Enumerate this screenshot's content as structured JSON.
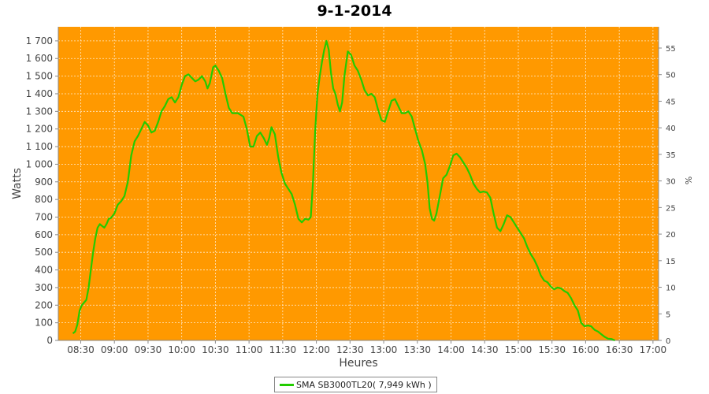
{
  "chart_data": {
    "type": "line",
    "title": "9-1-2014",
    "xlabel": "Heures",
    "ylabel": "Watts",
    "y2label": "%",
    "x_range": [
      "08:10",
      "17:05"
    ],
    "ylim": [
      0,
      1780
    ],
    "y2lim": [
      0,
      59
    ],
    "y_ticks": [
      "0",
      "100",
      "200",
      "300",
      "400",
      "500",
      "600",
      "700",
      "800",
      "900",
      "1 000",
      "1 100",
      "1 200",
      "1 300",
      "1 400",
      "1 500",
      "1 600",
      "1 700"
    ],
    "y2_ticks": [
      "0",
      "5",
      "10",
      "15",
      "20",
      "25",
      "30",
      "35",
      "40",
      "45",
      "50",
      "55"
    ],
    "x_ticks": [
      "08:30",
      "09:00",
      "09:30",
      "10:00",
      "10:30",
      "11:00",
      "11:30",
      "12:00",
      "12:30",
      "13:00",
      "13:30",
      "14:00",
      "14:30",
      "15:00",
      "15:30",
      "16:00",
      "16:30",
      "17:00"
    ],
    "grid": true,
    "background": "#ff9900",
    "legend_position": "bottom",
    "series": [
      {
        "name": "SMA SB3000TL20( 7,949 kWh )",
        "color": "#22cc00",
        "points": [
          [
            "08:23",
            40
          ],
          [
            "08:25",
            50
          ],
          [
            "08:27",
            90
          ],
          [
            "08:29",
            170
          ],
          [
            "08:31",
            200
          ],
          [
            "08:33",
            215
          ],
          [
            "08:35",
            230
          ],
          [
            "08:37",
            300
          ],
          [
            "08:39",
            400
          ],
          [
            "08:41",
            500
          ],
          [
            "08:43",
            580
          ],
          [
            "08:45",
            640
          ],
          [
            "08:47",
            660
          ],
          [
            "08:49",
            650
          ],
          [
            "08:51",
            640
          ],
          [
            "08:53",
            660
          ],
          [
            "08:55",
            690
          ],
          [
            "08:57",
            695
          ],
          [
            "09:00",
            720
          ],
          [
            "09:03",
            770
          ],
          [
            "09:06",
            790
          ],
          [
            "09:09",
            820
          ],
          [
            "09:12",
            900
          ],
          [
            "09:15",
            1050
          ],
          [
            "09:18",
            1130
          ],
          [
            "09:21",
            1160
          ],
          [
            "09:24",
            1200
          ],
          [
            "09:27",
            1240
          ],
          [
            "09:30",
            1220
          ],
          [
            "09:33",
            1180
          ],
          [
            "09:36",
            1190
          ],
          [
            "09:39",
            1240
          ],
          [
            "09:42",
            1300
          ],
          [
            "09:45",
            1330
          ],
          [
            "09:48",
            1370
          ],
          [
            "09:51",
            1380
          ],
          [
            "09:54",
            1350
          ],
          [
            "09:57",
            1380
          ],
          [
            "10:00",
            1450
          ],
          [
            "10:03",
            1500
          ],
          [
            "10:06",
            1510
          ],
          [
            "10:09",
            1490
          ],
          [
            "10:12",
            1470
          ],
          [
            "10:15",
            1480
          ],
          [
            "10:18",
            1500
          ],
          [
            "10:21",
            1470
          ],
          [
            "10:23",
            1430
          ],
          [
            "10:25",
            1460
          ],
          [
            "10:28",
            1550
          ],
          [
            "10:30",
            1560
          ],
          [
            "10:33",
            1530
          ],
          [
            "10:36",
            1490
          ],
          [
            "10:39",
            1400
          ],
          [
            "10:42",
            1320
          ],
          [
            "10:45",
            1290
          ],
          [
            "10:50",
            1290
          ],
          [
            "10:55",
            1270
          ],
          [
            "10:58",
            1200
          ],
          [
            "11:01",
            1100
          ],
          [
            "11:04",
            1100
          ],
          [
            "11:07",
            1160
          ],
          [
            "11:10",
            1180
          ],
          [
            "11:13",
            1150
          ],
          [
            "11:16",
            1110
          ],
          [
            "11:18",
            1150
          ],
          [
            "11:20",
            1210
          ],
          [
            "11:23",
            1170
          ],
          [
            "11:26",
            1040
          ],
          [
            "11:29",
            950
          ],
          [
            "11:32",
            890
          ],
          [
            "11:35",
            860
          ],
          [
            "11:38",
            830
          ],
          [
            "11:41",
            770
          ],
          [
            "11:44",
            690
          ],
          [
            "11:47",
            670
          ],
          [
            "11:50",
            690
          ],
          [
            "11:53",
            685
          ],
          [
            "11:55",
            700
          ],
          [
            "11:57",
            900
          ],
          [
            "11:59",
            1200
          ],
          [
            "12:01",
            1400
          ],
          [
            "12:03",
            1500
          ],
          [
            "12:05",
            1580
          ],
          [
            "12:07",
            1650
          ],
          [
            "12:09",
            1700
          ],
          [
            "12:11",
            1650
          ],
          [
            "12:13",
            1520
          ],
          [
            "12:15",
            1430
          ],
          [
            "12:17",
            1400
          ],
          [
            "12:19",
            1340
          ],
          [
            "12:21",
            1300
          ],
          [
            "12:23",
            1350
          ],
          [
            "12:25",
            1500
          ],
          [
            "12:28",
            1640
          ],
          [
            "12:31",
            1620
          ],
          [
            "12:34",
            1560
          ],
          [
            "12:37",
            1530
          ],
          [
            "12:40",
            1480
          ],
          [
            "12:43",
            1420
          ],
          [
            "12:46",
            1390
          ],
          [
            "12:49",
            1400
          ],
          [
            "12:52",
            1380
          ],
          [
            "12:55",
            1310
          ],
          [
            "12:58",
            1250
          ],
          [
            "13:01",
            1240
          ],
          [
            "13:04",
            1300
          ],
          [
            "13:07",
            1360
          ],
          [
            "13:10",
            1370
          ],
          [
            "13:13",
            1330
          ],
          [
            "13:16",
            1290
          ],
          [
            "13:19",
            1290
          ],
          [
            "13:22",
            1300
          ],
          [
            "13:25",
            1270
          ],
          [
            "13:28",
            1200
          ],
          [
            "13:31",
            1130
          ],
          [
            "13:34",
            1080
          ],
          [
            "13:37",
            1000
          ],
          [
            "13:39",
            900
          ],
          [
            "13:41",
            750
          ],
          [
            "13:43",
            690
          ],
          [
            "13:45",
            680
          ],
          [
            "13:47",
            720
          ],
          [
            "13:50",
            820
          ],
          [
            "13:53",
            920
          ],
          [
            "13:56",
            940
          ],
          [
            "13:59",
            990
          ],
          [
            "14:02",
            1050
          ],
          [
            "14:05",
            1060
          ],
          [
            "14:08",
            1040
          ],
          [
            "14:11",
            1010
          ],
          [
            "14:14",
            980
          ],
          [
            "14:17",
            940
          ],
          [
            "14:20",
            890
          ],
          [
            "14:23",
            860
          ],
          [
            "14:26",
            840
          ],
          [
            "14:29",
            845
          ],
          [
            "14:32",
            840
          ],
          [
            "14:35",
            810
          ],
          [
            "14:38",
            720
          ],
          [
            "14:41",
            640
          ],
          [
            "14:44",
            620
          ],
          [
            "14:47",
            660
          ],
          [
            "14:50",
            710
          ],
          [
            "14:53",
            700
          ],
          [
            "14:56",
            670
          ],
          [
            "14:59",
            640
          ],
          [
            "15:02",
            610
          ],
          [
            "15:05",
            580
          ],
          [
            "15:08",
            530
          ],
          [
            "15:11",
            490
          ],
          [
            "15:14",
            460
          ],
          [
            "15:17",
            420
          ],
          [
            "15:20",
            370
          ],
          [
            "15:23",
            340
          ],
          [
            "15:26",
            330
          ],
          [
            "15:29",
            305
          ],
          [
            "15:32",
            290
          ],
          [
            "15:35",
            300
          ],
          [
            "15:38",
            295
          ],
          [
            "15:41",
            280
          ],
          [
            "15:44",
            270
          ],
          [
            "15:47",
            240
          ],
          [
            "15:50",
            200
          ],
          [
            "15:53",
            170
          ],
          [
            "15:56",
            100
          ],
          [
            "15:59",
            80
          ],
          [
            "16:02",
            85
          ],
          [
            "16:05",
            80
          ],
          [
            "16:08",
            60
          ],
          [
            "16:11",
            50
          ],
          [
            "16:14",
            35
          ],
          [
            "16:17",
            20
          ],
          [
            "16:20",
            10
          ],
          [
            "16:23",
            8
          ],
          [
            "16:26",
            0
          ]
        ]
      }
    ]
  }
}
